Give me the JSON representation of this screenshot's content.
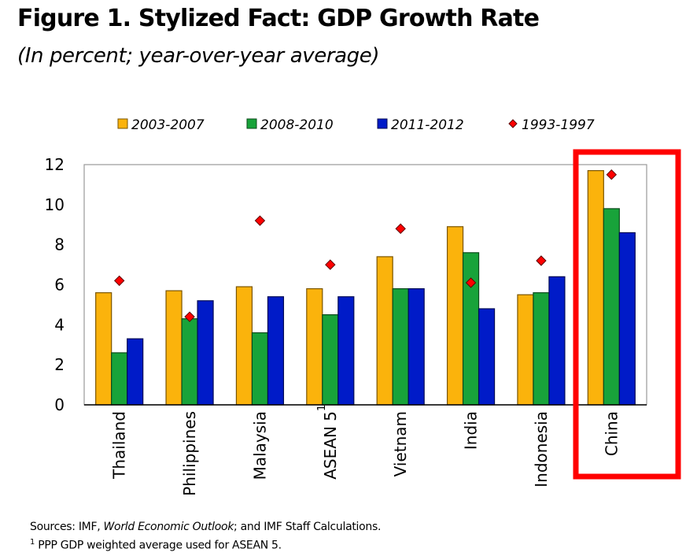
{
  "chart_data": {
    "type": "bar",
    "title": "Figure 1. Stylized Fact: GDP Growth Rate",
    "subtitle": "(In percent; year-over-year average)",
    "xlabel": "",
    "ylabel": "",
    "ylim": [
      0,
      12
    ],
    "yticks": [
      0,
      2,
      4,
      6,
      8,
      10,
      12
    ],
    "grid": false,
    "legend_position": "top",
    "categories": [
      "Thailand",
      "Philippines",
      "Malaysia",
      "ASEAN 5",
      "Vietnam",
      "India",
      "Indonesia",
      "China"
    ],
    "category_superscripts": {
      "ASEAN 5": "1"
    },
    "series": [
      {
        "name": "2003-2007",
        "type": "bar",
        "color": "#FBB30C",
        "values": [
          5.6,
          5.7,
          5.9,
          5.8,
          7.4,
          8.9,
          5.5,
          11.7
        ]
      },
      {
        "name": "2008-2010",
        "type": "bar",
        "color": "#18A33A",
        "values": [
          2.6,
          4.3,
          3.6,
          4.5,
          5.8,
          7.6,
          5.6,
          9.8
        ]
      },
      {
        "name": "2011-2012",
        "type": "bar",
        "color": "#001BC8",
        "values": [
          3.3,
          5.2,
          5.4,
          5.4,
          5.8,
          4.8,
          6.4,
          8.6
        ]
      },
      {
        "name": "1993-1997",
        "type": "marker",
        "marker": "diamond",
        "color": "#FF0000",
        "values": [
          6.2,
          4.4,
          9.2,
          7.0,
          8.8,
          6.1,
          7.2,
          11.5
        ]
      }
    ],
    "highlight": {
      "category": "China",
      "color": "#FF0000"
    },
    "notes": {
      "sources_prefix": "Sources: IMF, ",
      "sources_italic": "World Economic Outlook",
      "sources_suffix": "; and IMF Staff Calculations.",
      "footnote_mark": "1",
      "footnote": " PPP GDP weighted average used for ASEAN 5."
    }
  }
}
